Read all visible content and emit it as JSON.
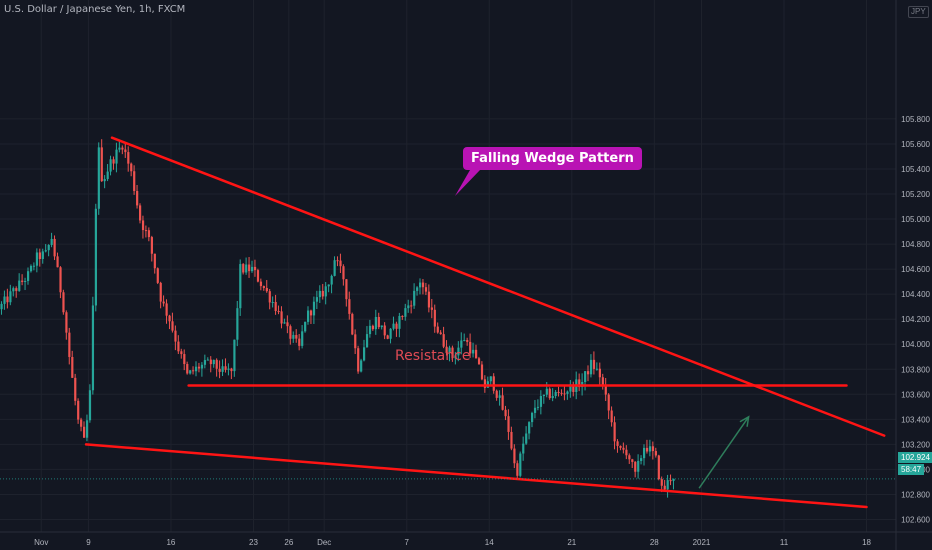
{
  "header": {
    "symbol_title": "U.S. Dollar / Japanese Yen, 1h, FXCM",
    "currency_badge": "JPY"
  },
  "annotations": {
    "wedge_label": "Falling Wedge Pattern",
    "resistance_label": "Resistance"
  },
  "price_tags": {
    "last_price": "102.924",
    "countdown": "58:47"
  },
  "colors": {
    "background": "#131722",
    "bull": "#26a69a",
    "bear": "#ef5350",
    "trendline": "#ff1414",
    "label_bg": "#b913b4",
    "arrow": "#2e7d5b"
  },
  "chart_data": {
    "type": "candlestick",
    "title": "U.S. Dollar / Japanese Yen, 1h, FXCM",
    "ylim": [
      102.5,
      106.75
    ],
    "y_ticks": [
      "102.600",
      "102.800",
      "103.000",
      "103.200",
      "103.400",
      "103.600",
      "103.800",
      "104.000",
      "104.200",
      "104.400",
      "104.600",
      "104.800",
      "105.000",
      "105.200",
      "105.400",
      "105.600",
      "105.800"
    ],
    "x_ticks": [
      "Nov",
      "9",
      "16",
      "23",
      "26",
      "Dec",
      "7",
      "14",
      "21",
      "28",
      "2021",
      "11",
      "18"
    ],
    "x_tick_pos": [
      1,
      5,
      12,
      19,
      22,
      25,
      32,
      39,
      46,
      53,
      57,
      64,
      71
    ],
    "x_range": [
      -2.5,
      73.5
    ],
    "price_path": [
      [
        -2.5,
        104.28
      ],
      [
        -1,
        104.45
      ],
      [
        0,
        104.55
      ],
      [
        0.8,
        104.7
      ],
      [
        1.5,
        104.72
      ],
      [
        2,
        104.85
      ],
      [
        3,
        104.3
      ],
      [
        3.5,
        103.9
      ],
      [
        4.2,
        103.4
      ],
      [
        4.8,
        103.2
      ],
      [
        5.3,
        103.65
      ],
      [
        5.6,
        104.6
      ],
      [
        5.9,
        105.62
      ],
      [
        6.3,
        105.3
      ],
      [
        7,
        105.45
      ],
      [
        8,
        105.6
      ],
      [
        8.8,
        105.35
      ],
      [
        9.5,
        105.0
      ],
      [
        10.2,
        104.85
      ],
      [
        10.8,
        104.6
      ],
      [
        11.3,
        104.35
      ],
      [
        12,
        104.2
      ],
      [
        12.8,
        103.95
      ],
      [
        13.5,
        103.75
      ],
      [
        14.5,
        103.82
      ],
      [
        15.5,
        103.85
      ],
      [
        16.5,
        103.78
      ],
      [
        17.3,
        103.78
      ],
      [
        18,
        104.6
      ],
      [
        19,
        104.6
      ],
      [
        20,
        104.45
      ],
      [
        21,
        104.3
      ],
      [
        22,
        104.1
      ],
      [
        23,
        103.97
      ],
      [
        23.5,
        104.2
      ],
      [
        24.5,
        104.35
      ],
      [
        25.5,
        104.48
      ],
      [
        26,
        104.68
      ],
      [
        26.8,
        104.52
      ],
      [
        27.5,
        104.1
      ],
      [
        28,
        103.82
      ],
      [
        28.8,
        104.1
      ],
      [
        29.5,
        104.2
      ],
      [
        30.5,
        104.05
      ],
      [
        31.5,
        104.2
      ],
      [
        32.5,
        104.35
      ],
      [
        33.3,
        104.52
      ],
      [
        34,
        104.3
      ],
      [
        35,
        104.05
      ],
      [
        36,
        103.9
      ],
      [
        37,
        104.05
      ],
      [
        37.8,
        103.92
      ],
      [
        38.8,
        103.65
      ],
      [
        39.3,
        103.72
      ],
      [
        40.2,
        103.5
      ],
      [
        40.8,
        103.3
      ],
      [
        41.4,
        102.95
      ],
      [
        42,
        103.2
      ],
      [
        43,
        103.5
      ],
      [
        44,
        103.6
      ],
      [
        45,
        103.6
      ],
      [
        46,
        103.65
      ],
      [
        47,
        103.7
      ],
      [
        47.8,
        103.85
      ],
      [
        48.5,
        103.75
      ],
      [
        49.3,
        103.45
      ],
      [
        50,
        103.15
      ],
      [
        50.8,
        103.15
      ],
      [
        51.5,
        102.95
      ],
      [
        52.3,
        103.2
      ],
      [
        53.2,
        103.1
      ],
      [
        53.8,
        102.82
      ],
      [
        54.6,
        102.95
      ]
    ],
    "series": [
      {
        "name": "USDJPY",
        "type": "candlestick",
        "values": "generated from price_path"
      }
    ],
    "lines": [
      {
        "role": "wedge-upper",
        "from": [
          7,
          105.65
        ],
        "to": [
          72.5,
          103.27
        ]
      },
      {
        "role": "wedge-lower",
        "from": [
          4.8,
          103.2
        ],
        "to": [
          71,
          102.7
        ]
      },
      {
        "role": "resistance",
        "from": [
          13.5,
          103.67
        ],
        "to": [
          69.3,
          103.67
        ]
      }
    ],
    "arrow": {
      "from": [
        56.8,
        102.85
      ],
      "to": [
        61,
        103.42
      ]
    },
    "last_price": 102.924
  }
}
